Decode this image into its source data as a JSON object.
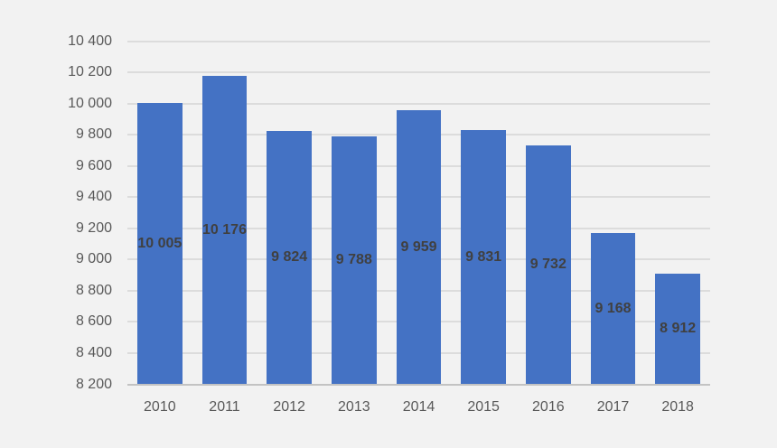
{
  "chart_data": {
    "type": "bar",
    "categories": [
      "2010",
      "2011",
      "2012",
      "2013",
      "2014",
      "2015",
      "2016",
      "2017",
      "2018"
    ],
    "values": [
      10005,
      10176,
      9824,
      9788,
      9959,
      9831,
      9732,
      9168,
      8912
    ],
    "data_labels": [
      "10 005",
      "10 176",
      "9 824",
      "9 788",
      "9 959",
      "9 831",
      "9 732",
      "9 168",
      "8 912"
    ],
    "title": "",
    "xlabel": "",
    "ylabel": "",
    "ylim": [
      8200,
      10400
    ],
    "ytick_step": 200,
    "yticks": [
      8200,
      8400,
      8600,
      8800,
      9000,
      9200,
      9400,
      9600,
      9800,
      10000,
      10200,
      10400
    ],
    "ytick_labels": [
      "8 200",
      "8 400",
      "8 600",
      "8 800",
      "9 000",
      "9 200",
      "9 400",
      "9 600",
      "9 800",
      "10 000",
      "10 200",
      "10 400"
    ],
    "grid": "horizontal",
    "legend": "none",
    "data_label_position": "inside-center",
    "colors": {
      "background": "#f2f2f2",
      "bar_fill": "#4472c4",
      "gridline": "#dcdcdc",
      "axis_line": "#c3c3c3",
      "tick_label": "#595959",
      "data_label": "#404040"
    }
  }
}
